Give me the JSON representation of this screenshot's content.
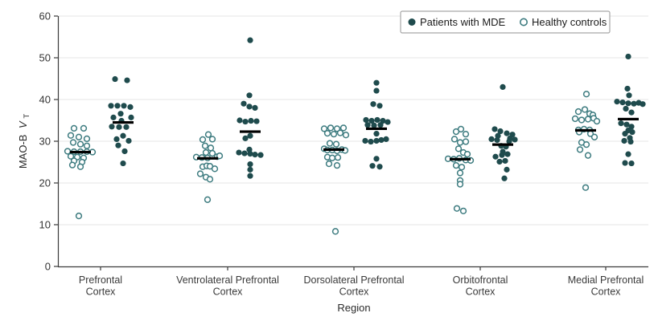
{
  "figure": {
    "background": "#ffffff"
  },
  "colors": {
    "patients_fill": "#1f4b4d",
    "controls_stroke": "#3e7c80",
    "median_bar": "#000000",
    "gridline": "#e5e5e5",
    "axis": "#3a3a3a",
    "legend_border": "#a6a6a6"
  },
  "legend": {
    "items": [
      {
        "label": "Patients with MDE",
        "marker": "filled-circle"
      },
      {
        "label": "Healthy controls",
        "marker": "open-circle"
      }
    ]
  },
  "chart_data": {
    "type": "scatter",
    "subtype": "jittered-strip-plot-with-median-bars",
    "title": "",
    "xlabel": "Region",
    "ylabel": "MAO-B VT",
    "ylabel_prefix": "MAO-B",
    "ylabel_symbol": "V",
    "ylabel_subscript": "T",
    "ylim": [
      0,
      60
    ],
    "yticks": [
      0,
      10,
      20,
      30,
      40,
      50,
      60
    ],
    "grid": true,
    "legend_position": "top-right",
    "series_names": [
      "Patients with MDE",
      "Healthy controls"
    ],
    "regions": [
      {
        "name": "Prefrontal Cortex",
        "label_lines": [
          "Prefrontal",
          "Cortex"
        ],
        "controls": {
          "median": 27.4,
          "points": [
            [
              -8,
              33.1
            ],
            [
              4,
              33.1
            ],
            [
              -12,
              31.4
            ],
            [
              -2,
              31.0
            ],
            [
              8,
              30.6
            ],
            [
              -9,
              29.7
            ],
            [
              0,
              29.3
            ],
            [
              8,
              28.9
            ],
            [
              -16,
              27.6
            ],
            [
              -8,
              27.5
            ],
            [
              0,
              27.5
            ],
            [
              8,
              27.5
            ],
            [
              15,
              27.4
            ],
            [
              -12,
              26.4
            ],
            [
              -4,
              26.2
            ],
            [
              4,
              26.0
            ],
            [
              -8,
              25.3
            ],
            [
              2,
              25.0
            ],
            [
              -10,
              24.3
            ],
            [
              0,
              23.9
            ],
            [
              -2,
              12.1
            ]
          ]
        },
        "patients": {
          "median": 34.5,
          "points": [
            [
              -10,
              44.9
            ],
            [
              5,
              44.6
            ],
            [
              -15,
              38.5
            ],
            [
              -7,
              38.5
            ],
            [
              1,
              38.5
            ],
            [
              9,
              38.2
            ],
            [
              -3,
              36.6
            ],
            [
              -12,
              35.7
            ],
            [
              10,
              35.7
            ],
            [
              -2,
              34.9
            ],
            [
              -14,
              33.5
            ],
            [
              -5,
              33.4
            ],
            [
              4,
              33.4
            ],
            [
              0,
              31.3
            ],
            [
              -8,
              30.5
            ],
            [
              7,
              30.1
            ],
            [
              -6,
              29.0
            ],
            [
              2,
              27.6
            ],
            [
              0,
              24.7
            ]
          ]
        }
      },
      {
        "name": "Ventrolateral Prefrontal Cortex",
        "label_lines": [
          "Ventrolateral Prefrontal",
          "Cortex"
        ],
        "controls": {
          "median": 25.9,
          "points": [
            [
              1,
              31.6
            ],
            [
              -6,
              30.4
            ],
            [
              6,
              30.5
            ],
            [
              -3,
              28.9
            ],
            [
              4,
              28.4
            ],
            [
              -2,
              27.3
            ],
            [
              6,
              27.1
            ],
            [
              -14,
              26.2
            ],
            [
              -7,
              26.1
            ],
            [
              0,
              26.0
            ],
            [
              12,
              26.3
            ],
            [
              15,
              26.5
            ],
            [
              -6,
              23.9
            ],
            [
              -1,
              24.1
            ],
            [
              3,
              24.0
            ],
            [
              9,
              23.4
            ],
            [
              -9,
              22.2
            ],
            [
              -2,
              21.4
            ],
            [
              3,
              20.9
            ],
            [
              0,
              16.0
            ]
          ]
        },
        "patients": {
          "median": 32.3,
          "points": [
            [
              0,
              54.2
            ],
            [
              -1,
              41.0
            ],
            [
              -8,
              39.0
            ],
            [
              -1,
              38.3
            ],
            [
              6,
              38.0
            ],
            [
              -13,
              35.0
            ],
            [
              -6,
              34.7
            ],
            [
              1,
              34.9
            ],
            [
              8,
              34.8
            ],
            [
              0,
              31.3
            ],
            [
              -6,
              30.7
            ],
            [
              -1,
              28.0
            ],
            [
              -14,
              27.3
            ],
            [
              -7,
              27.1
            ],
            [
              0,
              27.0
            ],
            [
              6,
              26.8
            ],
            [
              13,
              26.7
            ],
            [
              0,
              24.5
            ],
            [
              0,
              23.2
            ],
            [
              0,
              21.7
            ]
          ]
        }
      },
      {
        "name": "Dorsolateral Prefrontal Cortex",
        "label_lines": [
          "Dorsolateral Prefrontal",
          "Cortex"
        ],
        "controls": {
          "median": 28.0,
          "points": [
            [
              -12,
              33.0
            ],
            [
              -4,
              33.2
            ],
            [
              4,
              33.0
            ],
            [
              12,
              33.2
            ],
            [
              -8,
              31.9
            ],
            [
              0,
              31.7
            ],
            [
              8,
              32.0
            ],
            [
              15,
              31.5
            ],
            [
              -5,
              29.5
            ],
            [
              3,
              29.3
            ],
            [
              -12,
              28.2
            ],
            [
              -8,
              27.9
            ],
            [
              -2,
              27.9
            ],
            [
              4,
              27.7
            ],
            [
              10,
              28.0
            ],
            [
              14,
              27.8
            ],
            [
              -8,
              26.2
            ],
            [
              -2,
              26.0
            ],
            [
              5,
              26.1
            ],
            [
              -6,
              24.6
            ],
            [
              4,
              24.2
            ],
            [
              2,
              8.4
            ]
          ]
        },
        "patients": {
          "median": 33.0,
          "points": [
            [
              0,
              44.0
            ],
            [
              0,
              42.1
            ],
            [
              -4,
              38.9
            ],
            [
              4,
              38.5
            ],
            [
              -13,
              35.1
            ],
            [
              -6,
              34.9
            ],
            [
              1,
              35.1
            ],
            [
              8,
              34.9
            ],
            [
              14,
              34.6
            ],
            [
              -11,
              33.9
            ],
            [
              -3,
              33.8
            ],
            [
              5,
              33.9
            ],
            [
              0,
              31.8
            ],
            [
              -14,
              30.1
            ],
            [
              -7,
              29.9
            ],
            [
              0,
              30.1
            ],
            [
              6,
              30.3
            ],
            [
              12,
              30.5
            ],
            [
              0,
              25.8
            ],
            [
              -5,
              24.1
            ],
            [
              4,
              23.9
            ]
          ]
        }
      },
      {
        "name": "Orbitofrontal Cortex",
        "label_lines": [
          "Orbitofrontal",
          "Cortex"
        ],
        "controls": {
          "median": 25.7,
          "points": [
            [
              -5,
              32.3
            ],
            [
              1,
              32.9
            ],
            [
              7,
              31.7
            ],
            [
              -7,
              30.5
            ],
            [
              0,
              29.7
            ],
            [
              7,
              29.9
            ],
            [
              -2,
              28.2
            ],
            [
              4,
              27.3
            ],
            [
              9,
              26.9
            ],
            [
              -15,
              25.8
            ],
            [
              -8,
              25.7
            ],
            [
              -1,
              25.9
            ],
            [
              7,
              25.5
            ],
            [
              13,
              25.4
            ],
            [
              -5,
              24.2
            ],
            [
              2,
              23.8
            ],
            [
              0,
              22.4
            ],
            [
              0,
              20.6
            ],
            [
              0,
              19.7
            ],
            [
              -4,
              13.9
            ],
            [
              4,
              13.3
            ]
          ]
        },
        "patients": {
          "median": 29.2,
          "points": [
            [
              -10,
              32.9
            ],
            [
              -3,
              32.4
            ],
            [
              5,
              31.9
            ],
            [
              12,
              31.6
            ],
            [
              -6,
              31.3
            ],
            [
              -14,
              30.5
            ],
            [
              -7,
              30.3
            ],
            [
              9,
              30.7
            ],
            [
              15,
              30.4
            ],
            [
              8,
              30.0
            ],
            [
              -2,
              28.9
            ],
            [
              4,
              28.7
            ],
            [
              0,
              27.5
            ],
            [
              -9,
              26.3
            ],
            [
              -1,
              26.7
            ],
            [
              6,
              26.9
            ],
            [
              -4,
              25.1
            ],
            [
              3,
              25.3
            ],
            [
              5,
              23.2
            ],
            [
              2,
              21.1
            ],
            [
              0,
              43.0
            ]
          ]
        }
      },
      {
        "name": "Medial Prefrontal Cortex",
        "label_lines": [
          "Medial Prefrontal",
          "Cortex"
        ],
        "controls": {
          "median": 32.6,
          "points": [
            [
              1,
              41.3
            ],
            [
              -9,
              37.1
            ],
            [
              -1,
              37.6
            ],
            [
              5,
              36.6
            ],
            [
              9,
              36.3
            ],
            [
              -13,
              35.4
            ],
            [
              -5,
              35.1
            ],
            [
              3,
              35.3
            ],
            [
              10,
              35.5
            ],
            [
              14,
              34.8
            ],
            [
              -9,
              32.7
            ],
            [
              -2,
              32.9
            ],
            [
              5,
              32.7
            ],
            [
              -8,
              32.2
            ],
            [
              6,
              31.8
            ],
            [
              11,
              31.0
            ],
            [
              -5,
              29.7
            ],
            [
              1,
              29.2
            ],
            [
              -7,
              28.0
            ],
            [
              3,
              26.6
            ],
            [
              0,
              18.9
            ]
          ]
        },
        "patients": {
          "median": 35.3,
          "points": [
            [
              0,
              50.3
            ],
            [
              -1,
              42.6
            ],
            [
              1,
              41.0
            ],
            [
              -14,
              39.5
            ],
            [
              -7,
              39.3
            ],
            [
              0,
              39.1
            ],
            [
              7,
              39.0
            ],
            [
              13,
              39.2
            ],
            [
              18,
              38.9
            ],
            [
              -3,
              37.8
            ],
            [
              4,
              36.9
            ],
            [
              -9,
              34.3
            ],
            [
              -2,
              34.0
            ],
            [
              4,
              33.5
            ],
            [
              0,
              32.6
            ],
            [
              5,
              32.2
            ],
            [
              -4,
              31.8
            ],
            [
              2,
              30.8
            ],
            [
              -5,
              30.1
            ],
            [
              3,
              29.9
            ],
            [
              0,
              26.9
            ],
            [
              -4,
              24.8
            ],
            [
              4,
              24.7
            ]
          ]
        }
      }
    ]
  }
}
